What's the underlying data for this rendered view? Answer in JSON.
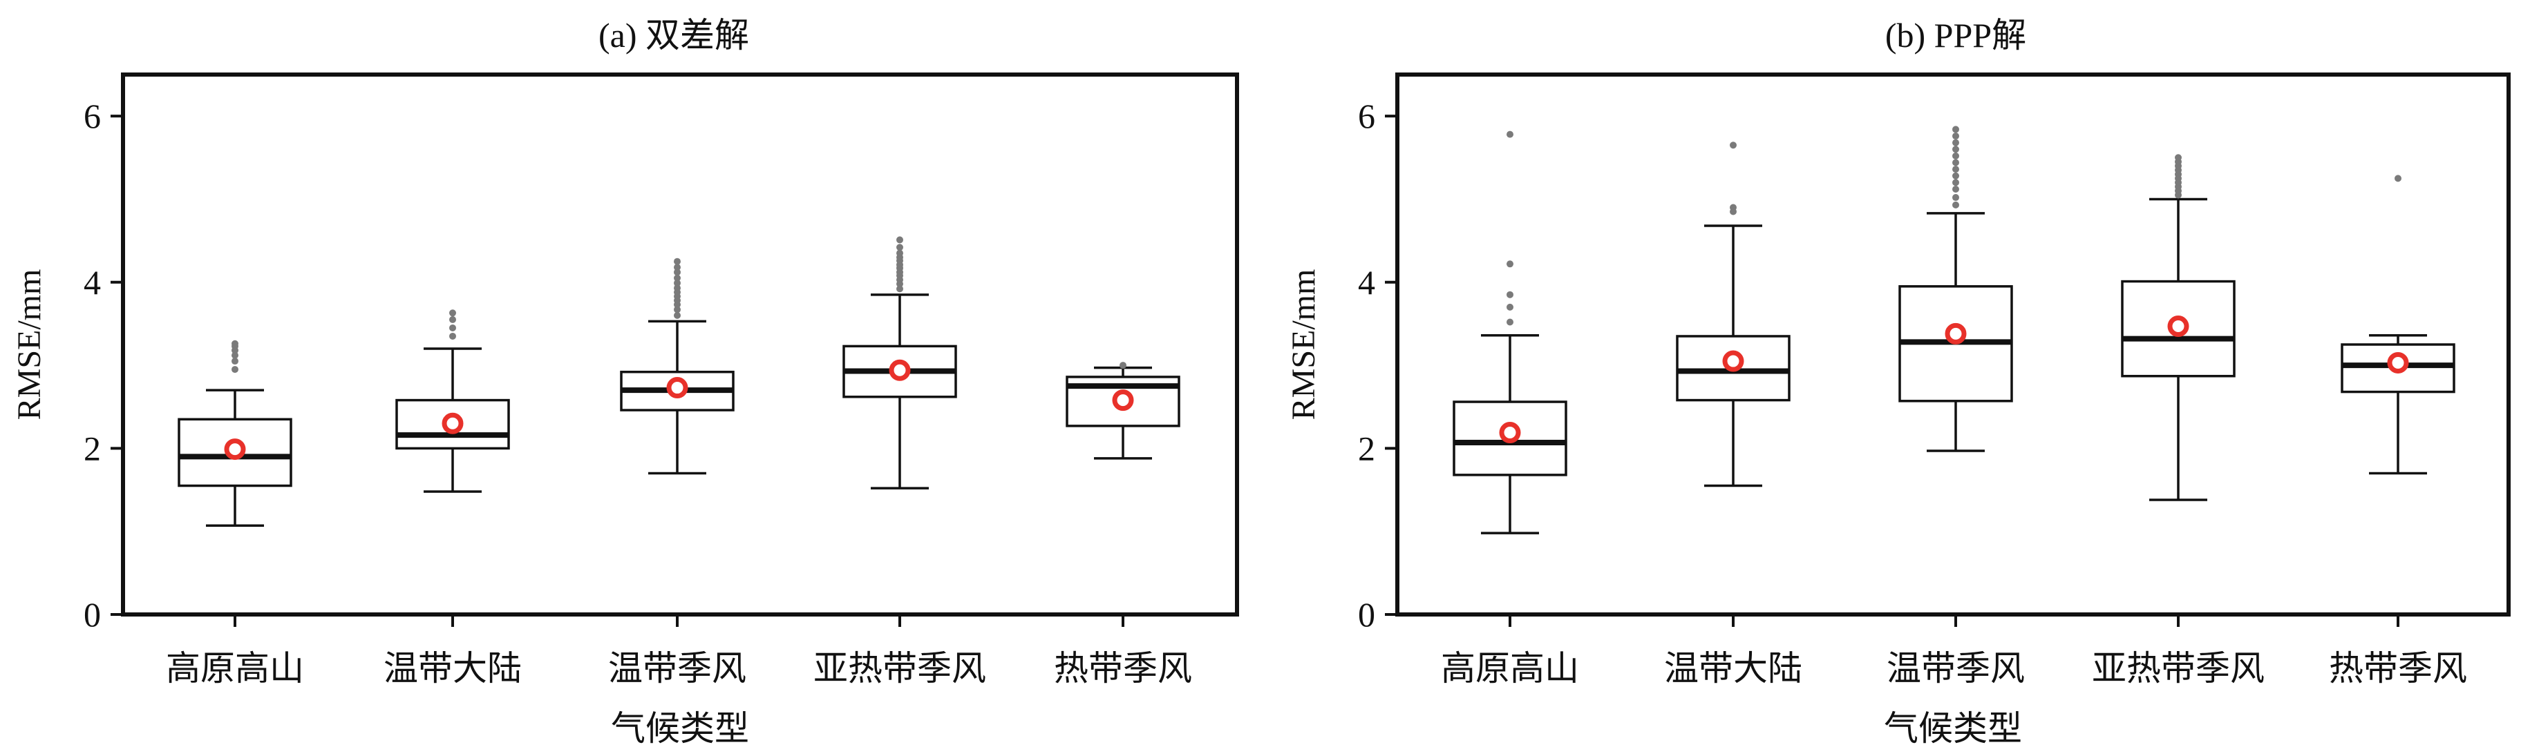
{
  "chart_data": [
    {
      "type": "boxplot",
      "title": "(a) 双差解",
      "xlabel": "气候类型",
      "ylabel": "RMSE/mm",
      "ylim": [
        0,
        6.5
      ],
      "yticks": [
        0,
        2,
        4,
        6
      ],
      "categories": [
        "高原高山",
        "温带大陆",
        "温带季风",
        "亚热带季风",
        "热带季风"
      ],
      "boxes": [
        {
          "whisker_low": 1.07,
          "q1": 1.55,
          "median": 1.9,
          "q3": 2.35,
          "whisker_high": 2.7,
          "mean": 1.99,
          "outliers": [
            2.95,
            3.05,
            3.12,
            3.18,
            3.23,
            3.26
          ]
        },
        {
          "whisker_low": 1.48,
          "q1": 2.0,
          "median": 2.16,
          "q3": 2.58,
          "whisker_high": 3.2,
          "mean": 2.3,
          "outliers": [
            3.35,
            3.45,
            3.55,
            3.63
          ]
        },
        {
          "whisker_low": 1.7,
          "q1": 2.46,
          "median": 2.7,
          "q3": 2.92,
          "whisker_high": 3.53,
          "mean": 2.73,
          "outliers": [
            3.6,
            3.67,
            3.73,
            3.78,
            3.83,
            3.88,
            3.93,
            3.99,
            4.05,
            4.12,
            4.18,
            4.25
          ]
        },
        {
          "whisker_low": 1.52,
          "q1": 2.62,
          "median": 2.93,
          "q3": 3.23,
          "whisker_high": 3.85,
          "mean": 2.94,
          "outliers": [
            3.92,
            3.98,
            4.03,
            4.08,
            4.12,
            4.17,
            4.21,
            4.26,
            4.3,
            4.35,
            4.42,
            4.51
          ]
        },
        {
          "whisker_low": 1.88,
          "q1": 2.27,
          "median": 2.75,
          "q3": 2.86,
          "whisker_high": 2.97,
          "mean": 2.58,
          "outliers": [
            3.0
          ]
        }
      ],
      "mean_color": "#e8312a",
      "outlier_color": "#7a7a7a"
    },
    {
      "type": "boxplot",
      "title": "(b) PPP解",
      "xlabel": "气候类型",
      "ylabel": "RMSE/mm",
      "ylim": [
        0,
        6.5
      ],
      "yticks": [
        0,
        2,
        4,
        6
      ],
      "categories": [
        "高原高山",
        "温带大陆",
        "温带季风",
        "亚热带季风",
        "热带季风"
      ],
      "boxes": [
        {
          "whisker_low": 0.98,
          "q1": 1.68,
          "median": 2.07,
          "q3": 2.56,
          "whisker_high": 3.36,
          "mean": 2.19,
          "outliers": [
            3.52,
            3.7,
            3.85,
            4.22,
            5.78
          ]
        },
        {
          "whisker_low": 1.55,
          "q1": 2.58,
          "median": 2.93,
          "q3": 3.35,
          "whisker_high": 4.68,
          "mean": 3.05,
          "outliers": [
            4.85,
            4.9,
            5.65
          ]
        },
        {
          "whisker_low": 1.97,
          "q1": 2.57,
          "median": 3.28,
          "q3": 3.95,
          "whisker_high": 4.83,
          "mean": 3.38,
          "outliers": [
            4.93,
            5.02,
            5.12,
            5.2,
            5.28,
            5.36,
            5.44,
            5.52,
            5.6,
            5.68,
            5.76,
            5.84
          ]
        },
        {
          "whisker_low": 1.38,
          "q1": 2.87,
          "median": 3.32,
          "q3": 4.01,
          "whisker_high": 5.0,
          "mean": 3.47,
          "outliers": [
            5.05,
            5.1,
            5.15,
            5.2,
            5.25,
            5.3,
            5.35,
            5.4,
            5.45,
            5.5
          ]
        },
        {
          "whisker_low": 1.7,
          "q1": 2.68,
          "median": 3.0,
          "q3": 3.25,
          "whisker_high": 3.36,
          "mean": 3.03,
          "outliers": [
            5.25
          ]
        }
      ],
      "mean_color": "#e8312a",
      "outlier_color": "#7a7a7a"
    }
  ]
}
